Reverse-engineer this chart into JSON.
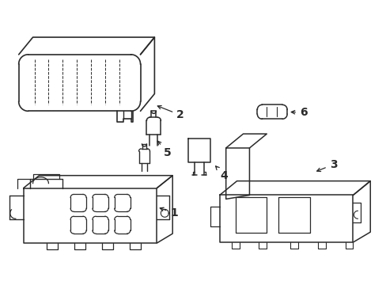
{
  "background_color": "#ffffff",
  "line_color": "#2a2a2a",
  "line_width": 1.0,
  "label_fontsize": 10,
  "figsize": [
    4.89,
    3.6
  ],
  "dpi": 100
}
